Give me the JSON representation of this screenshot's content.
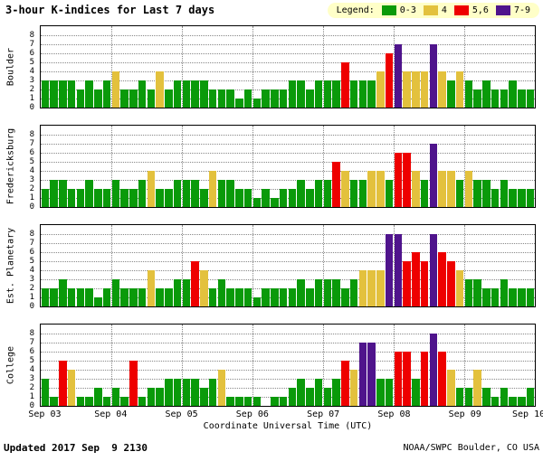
{
  "title": "3-hour K-indices for Last 7 days",
  "legend": {
    "label": "Legend:",
    "background": "#ffffc8",
    "items": [
      {
        "label": "0-3",
        "color": "#0a9a0a"
      },
      {
        "label": "4",
        "color": "#e3c13d"
      },
      {
        "label": "5,6",
        "color": "#ee0000"
      },
      {
        "label": "7-9",
        "color": "#4f148c"
      }
    ]
  },
  "footer": {
    "updated_label": "Updated",
    "updated_value": "2017 Sep  9 2130",
    "credit": "NOAA/SWPC Boulder, CO USA"
  },
  "chart_data": {
    "type": "bar",
    "title": "3-hour K-indices for Last 7 days",
    "xlabel": "Coordinate Universal Time (UTC)",
    "x_tick_labels": [
      "Sep 03",
      "Sep 04",
      "Sep 05",
      "Sep 06",
      "Sep 07",
      "Sep 08",
      "Sep 09",
      "Sep 10"
    ],
    "ylim": [
      0,
      9
    ],
    "y_ticks": [
      0,
      1,
      2,
      3,
      4,
      5,
      6,
      7,
      8
    ],
    "days": 7,
    "bars_per_day": 8,
    "interval_hours": 3,
    "grid": "dotted",
    "legend_position": "top-right",
    "color_rules": [
      {
        "range": "0-3",
        "color": "#0a9a0a"
      },
      {
        "range": "4",
        "color": "#e3c13d"
      },
      {
        "range": "5,6",
        "color": "#ee0000"
      },
      {
        "range": "7-9",
        "color": "#4f148c"
      }
    ],
    "series": [
      {
        "name": "Boulder",
        "values": [
          3,
          3,
          3,
          3,
          2,
          3,
          2,
          3,
          4,
          2,
          2,
          3,
          2,
          4,
          2,
          3,
          3,
          3,
          3,
          2,
          2,
          2,
          1,
          2,
          1,
          2,
          2,
          2,
          3,
          3,
          2,
          3,
          3,
          3,
          5,
          3,
          3,
          3,
          4,
          6,
          7,
          4,
          4,
          4,
          7,
          4,
          3,
          4,
          3,
          2,
          3,
          2,
          2,
          3,
          2,
          2
        ]
      },
      {
        "name": "Fredericksburg",
        "values": [
          2,
          3,
          3,
          2,
          2,
          3,
          2,
          2,
          3,
          2,
          2,
          3,
          4,
          2,
          2,
          3,
          3,
          3,
          2,
          4,
          3,
          3,
          2,
          2,
          1,
          2,
          1,
          2,
          2,
          3,
          2,
          3,
          3,
          5,
          4,
          3,
          3,
          4,
          4,
          3,
          6,
          6,
          4,
          3,
          7,
          4,
          4,
          3,
          4,
          3,
          3,
          2,
          3,
          2,
          2,
          2
        ]
      },
      {
        "name": "Est. Planetary",
        "values": [
          2,
          2,
          3,
          2,
          2,
          2,
          1,
          2,
          3,
          2,
          2,
          2,
          4,
          2,
          2,
          3,
          3,
          5,
          4,
          2,
          3,
          2,
          2,
          2,
          1,
          2,
          2,
          2,
          2,
          3,
          2,
          3,
          3,
          3,
          2,
          3,
          4,
          4,
          4,
          8,
          8,
          5,
          6,
          5,
          8,
          6,
          5,
          4,
          3,
          3,
          2,
          2,
          3,
          2,
          2,
          2
        ]
      },
      {
        "name": "College",
        "values": [
          3,
          1,
          5,
          4,
          1,
          1,
          2,
          1,
          2,
          1,
          5,
          1,
          2,
          2,
          3,
          3,
          3,
          3,
          2,
          3,
          4,
          1,
          1,
          1,
          1,
          0,
          1,
          1,
          2,
          3,
          2,
          3,
          2,
          3,
          5,
          4,
          7,
          7,
          3,
          3,
          6,
          6,
          3,
          6,
          8,
          6,
          4,
          2,
          2,
          4,
          2,
          1,
          2,
          1,
          1,
          2
        ]
      }
    ]
  }
}
